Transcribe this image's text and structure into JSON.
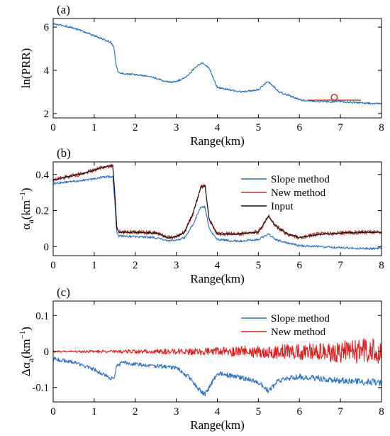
{
  "chart_data": [
    {
      "type": "line",
      "panel_label": "(a)",
      "xlabel": "Range(km)",
      "ylabel": "ln(PRR)",
      "xlim": [
        0,
        8
      ],
      "ylim": [
        1.8,
        6.4
      ],
      "xticks": [
        0,
        1,
        2,
        3,
        4,
        5,
        6,
        7,
        8
      ],
      "yticks": [
        2,
        4,
        6
      ],
      "grid": false,
      "series": [
        {
          "color": "#1f6fc1",
          "noise": 0.04,
          "noise_growth": 0.12,
          "x": [
            0,
            0.3,
            0.6,
            1.0,
            1.4,
            1.48,
            1.52,
            1.58,
            1.7,
            2.0,
            2.4,
            2.7,
            2.9,
            3.1,
            3.3,
            3.5,
            3.65,
            3.8,
            4.0,
            4.3,
            4.6,
            5.0,
            5.2,
            5.3,
            5.5,
            5.8,
            6.0,
            6.2,
            6.5,
            7.0,
            7.5,
            8.0
          ],
          "y": [
            6.15,
            6.05,
            5.9,
            5.6,
            5.3,
            5.1,
            4.4,
            3.9,
            3.85,
            3.8,
            3.7,
            3.5,
            3.45,
            3.55,
            3.8,
            4.2,
            4.35,
            4.1,
            3.2,
            3.1,
            3.0,
            3.1,
            3.45,
            3.4,
            3.0,
            2.8,
            2.65,
            2.6,
            2.55,
            2.55,
            2.5,
            2.45
          ]
        }
      ],
      "annotations": [
        {
          "shape": "circle",
          "x": 6.85,
          "y": 2.75,
          "color": "#b03a2e"
        },
        {
          "shape": "segment",
          "x": [
            6.2,
            7.5
          ],
          "y": [
            2.62,
            2.62
          ],
          "color": "#b03a2e"
        }
      ]
    },
    {
      "type": "line",
      "panel_label": "(b)",
      "xlabel": "Range(km)",
      "ylabel": "α_a(km^-1)",
      "xlim": [
        0,
        8
      ],
      "ylim": [
        -0.05,
        0.47
      ],
      "xticks": [
        0,
        1,
        2,
        3,
        4,
        5,
        6,
        7,
        8
      ],
      "yticks": [
        0,
        0.2,
        0.4
      ],
      "grid": false,
      "legend": "top-right",
      "series": [
        {
          "name": "Slope method",
          "color": "#2b72c6",
          "noise": 0.006,
          "x": [
            0,
            0.4,
            0.8,
            1.2,
            1.45,
            1.5,
            1.55,
            1.6,
            2.0,
            2.5,
            2.8,
            3.0,
            3.2,
            3.4,
            3.6,
            3.7,
            3.8,
            4.0,
            4.5,
            5.0,
            5.25,
            5.4,
            5.7,
            6.0,
            6.5,
            7.0,
            7.5,
            8.0
          ],
          "y": [
            0.35,
            0.36,
            0.37,
            0.385,
            0.39,
            0.25,
            0.08,
            0.06,
            0.055,
            0.05,
            0.03,
            0.035,
            0.05,
            0.12,
            0.22,
            0.22,
            0.1,
            0.04,
            0.03,
            0.04,
            0.07,
            0.04,
            0.02,
            0.005,
            0.0,
            -0.005,
            -0.01,
            -0.01
          ]
        },
        {
          "name": "New method",
          "color": "#c0392b",
          "noise": 0.012,
          "x": [
            0,
            0.4,
            0.8,
            1.2,
            1.45,
            1.5,
            1.55,
            1.6,
            2.0,
            2.5,
            2.8,
            3.0,
            3.2,
            3.4,
            3.6,
            3.7,
            3.8,
            4.0,
            4.5,
            5.0,
            5.25,
            5.4,
            5.7,
            6.0,
            6.5,
            7.0,
            7.5,
            8.0
          ],
          "y": [
            0.37,
            0.39,
            0.41,
            0.44,
            0.45,
            0.3,
            0.1,
            0.08,
            0.08,
            0.075,
            0.05,
            0.055,
            0.08,
            0.18,
            0.33,
            0.34,
            0.15,
            0.07,
            0.07,
            0.08,
            0.17,
            0.12,
            0.07,
            0.05,
            0.07,
            0.075,
            0.08,
            0.08
          ]
        },
        {
          "name": "Input",
          "color": "#111111",
          "noise": 0.004,
          "x": [
            0,
            0.4,
            0.8,
            1.2,
            1.45,
            1.5,
            1.55,
            1.6,
            2.0,
            2.5,
            2.8,
            3.0,
            3.2,
            3.4,
            3.6,
            3.7,
            3.8,
            4.0,
            4.5,
            5.0,
            5.25,
            5.4,
            5.7,
            6.0,
            6.5,
            7.0,
            7.5,
            8.0
          ],
          "y": [
            0.37,
            0.39,
            0.41,
            0.44,
            0.45,
            0.3,
            0.1,
            0.08,
            0.08,
            0.075,
            0.05,
            0.055,
            0.08,
            0.18,
            0.33,
            0.34,
            0.15,
            0.07,
            0.07,
            0.08,
            0.17,
            0.12,
            0.07,
            0.05,
            0.07,
            0.075,
            0.08,
            0.08
          ]
        }
      ]
    },
    {
      "type": "line",
      "panel_label": "(c)",
      "xlabel": "Range(km)",
      "ylabel": "Δα_a(km^-1)",
      "xlim": [
        0,
        8
      ],
      "ylim": [
        -0.14,
        0.14
      ],
      "xticks": [
        0,
        1,
        2,
        3,
        4,
        5,
        6,
        7,
        8
      ],
      "yticks": [
        -0.1,
        0,
        0.1
      ],
      "grid": false,
      "legend": "top-right",
      "series": [
        {
          "name": "Slope method",
          "color": "#2b72c6",
          "noise": 0.005,
          "noise_growth": 1.0,
          "x": [
            0,
            0.5,
            1.0,
            1.4,
            1.5,
            1.55,
            1.7,
            2.0,
            2.5,
            3.0,
            3.3,
            3.5,
            3.7,
            3.85,
            4.0,
            4.5,
            5.0,
            5.25,
            5.5,
            6.0,
            6.5,
            7.0,
            7.5,
            8.0
          ],
          "y": [
            -0.02,
            -0.03,
            -0.05,
            -0.075,
            -0.07,
            -0.04,
            -0.03,
            -0.035,
            -0.04,
            -0.045,
            -0.07,
            -0.1,
            -0.12,
            -0.09,
            -0.06,
            -0.07,
            -0.085,
            -0.11,
            -0.08,
            -0.07,
            -0.075,
            -0.08,
            -0.085,
            -0.085
          ]
        },
        {
          "name": "New method",
          "color": "#e02020",
          "noise": 0.003,
          "noise_growth": 12.0,
          "x": [
            0,
            1,
            2,
            3,
            4,
            5,
            6,
            7,
            8
          ],
          "y": [
            0,
            0,
            0,
            0,
            0,
            0,
            0,
            0,
            0
          ]
        }
      ]
    }
  ]
}
